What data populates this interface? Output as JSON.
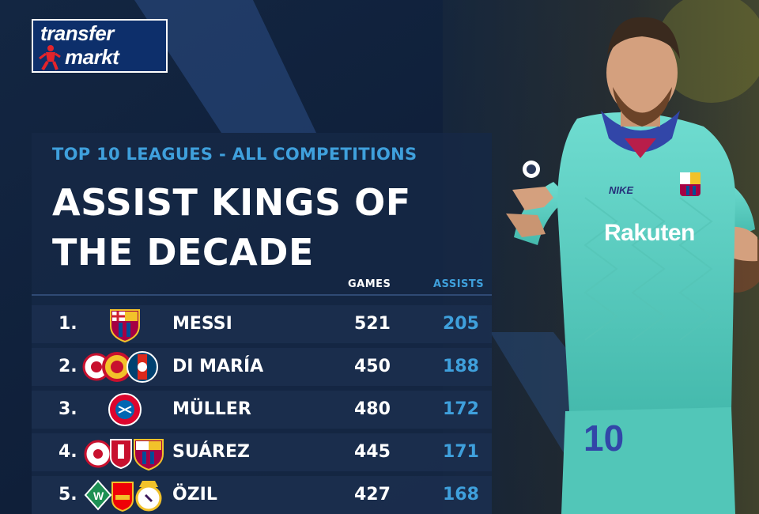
{
  "logo": {
    "line1": "transfer",
    "line2": "markt"
  },
  "header": {
    "subtitle": "TOP 10 LEAGUES - ALL COMPETITIONS",
    "title": "ASSIST KINGS OF THE DECADE"
  },
  "columns": {
    "games": "GAMES",
    "assists": "ASSISTS"
  },
  "player_photo": {
    "sponsor_text": "Rakuten",
    "kit_brand": "NIKE",
    "shirt_number": "10"
  },
  "rows": [
    {
      "rank": "1.",
      "name": "MESSI",
      "games": "521",
      "assists": "205",
      "clubs": [
        "barcelona-crest-icon"
      ]
    },
    {
      "rank": "2.",
      "name": "DI MARÍA",
      "games": "450",
      "assists": "188",
      "clubs": [
        "benfica-crest-icon",
        "man-utd-crest-icon",
        "psg-crest-icon"
      ]
    },
    {
      "rank": "3.",
      "name": "MÜLLER",
      "games": "480",
      "assists": "172",
      "clubs": [
        "bayern-crest-icon"
      ]
    },
    {
      "rank": "4.",
      "name": "SUÁREZ",
      "games": "445",
      "assists": "171",
      "clubs": [
        "ajax-crest-icon",
        "liverpool-crest-icon",
        "barcelona-crest-icon"
      ]
    },
    {
      "rank": "5.",
      "name": "ÖZIL",
      "games": "427",
      "assists": "168",
      "clubs": [
        "werder-crest-icon",
        "arsenal-crest-icon",
        "real-madrid-crest-icon"
      ]
    }
  ],
  "colors": {
    "accent": "#3fa0dc",
    "panel": "#162846",
    "jersey": "#5fd3c4"
  }
}
